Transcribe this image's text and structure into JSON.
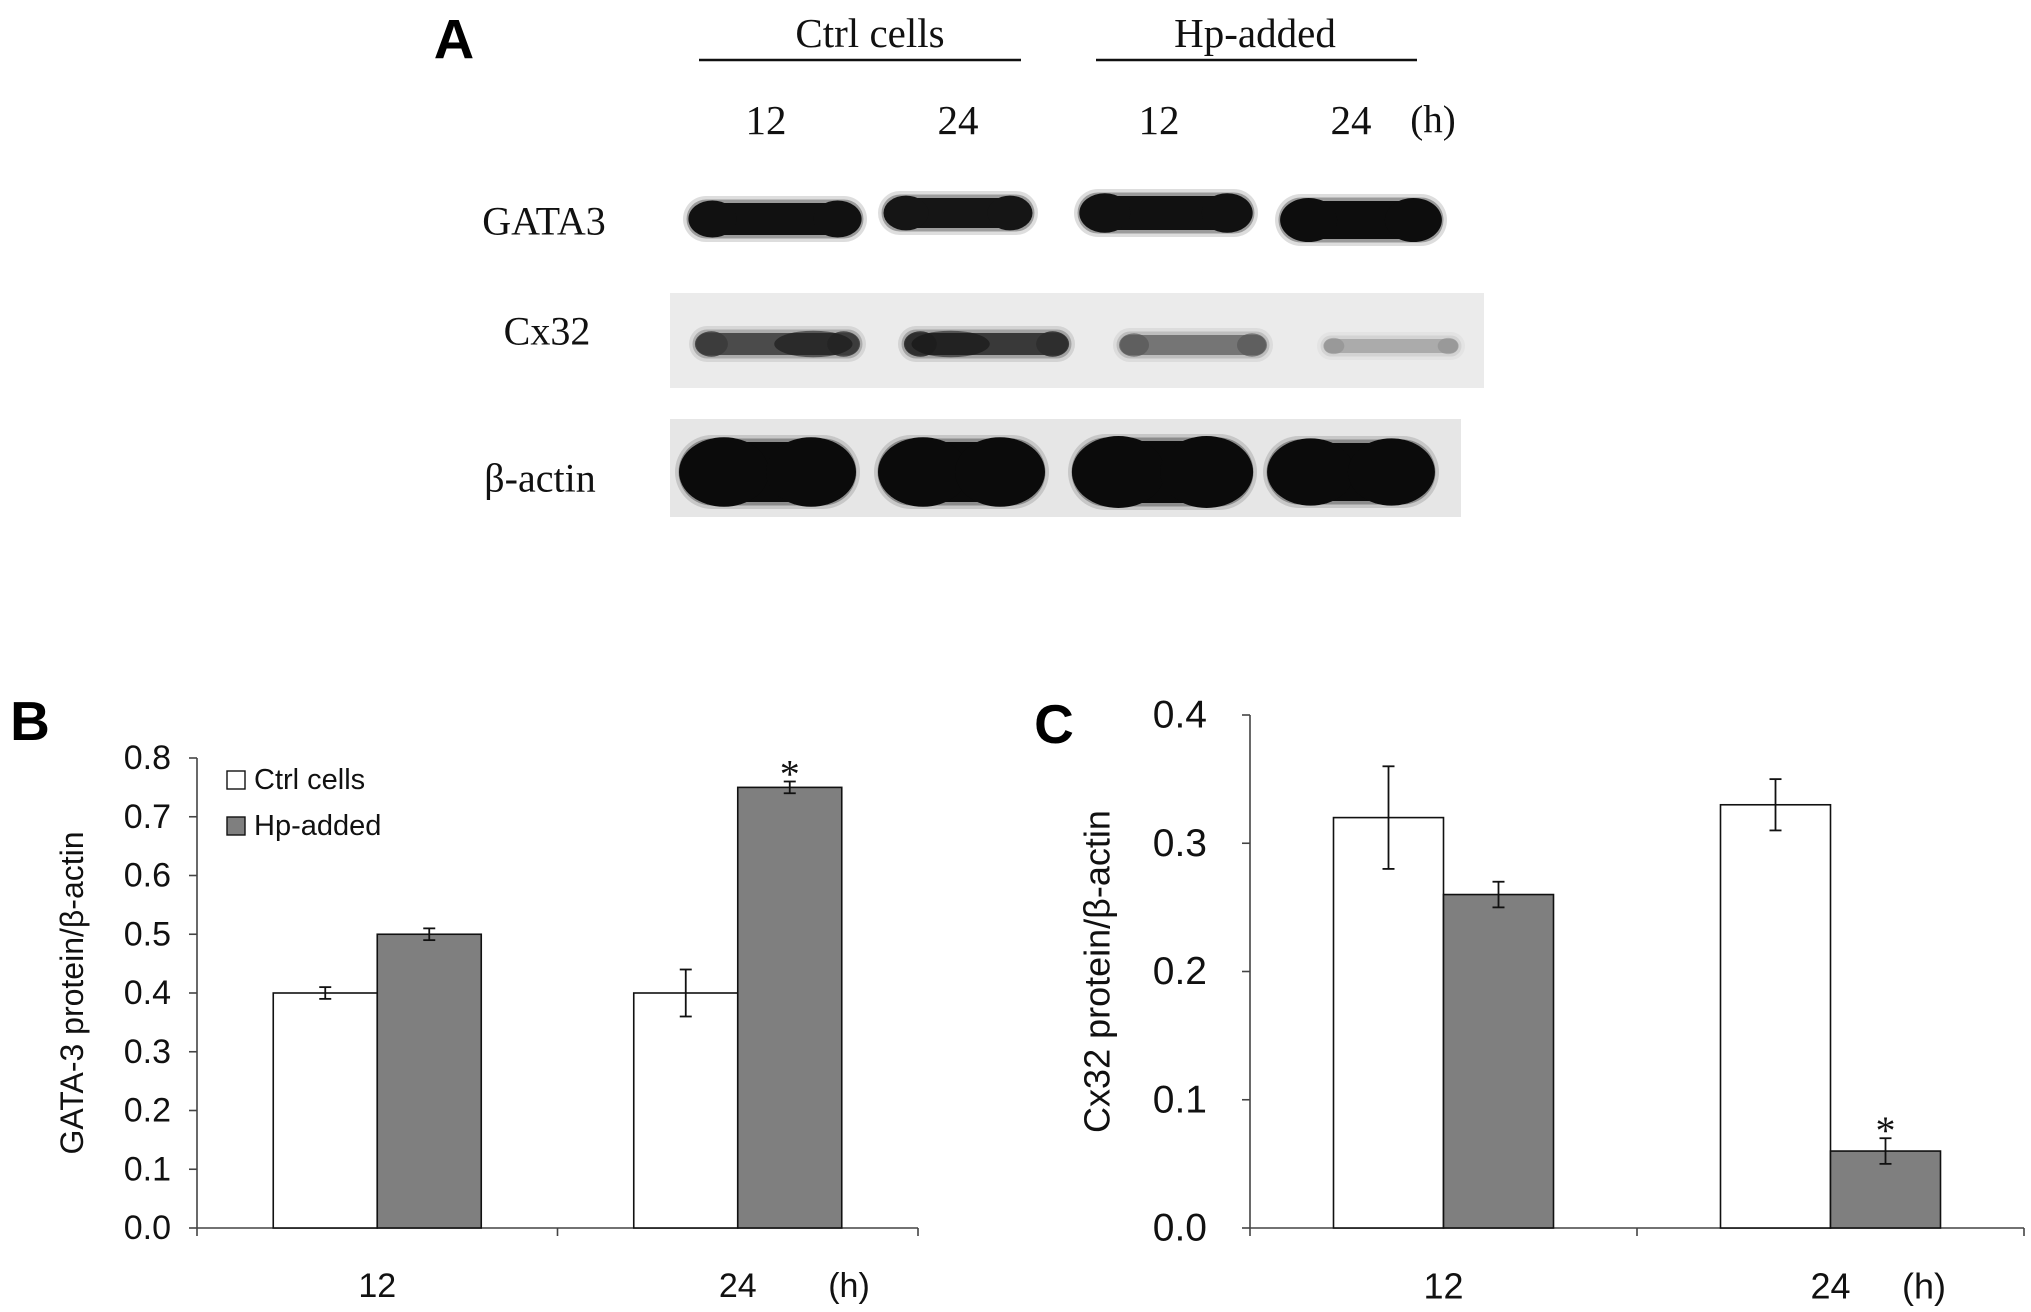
{
  "figure": {
    "panel_a": {
      "label": "A",
      "group_labels": [
        "Ctrl cells",
        "Hp-added"
      ],
      "lane_labels": [
        "12",
        "24",
        "12",
        "24"
      ],
      "time_unit": "(h)",
      "row_labels": [
        "GATA3",
        "Cx32",
        "β-actin"
      ]
    }
  },
  "chart_data": [
    {
      "panel_label": "B",
      "type": "bar",
      "categories": [
        "12",
        "24"
      ],
      "x_unit": "(h)",
      "ylabel": "GATA-3 protein/β-actin",
      "ylim": [
        0,
        0.8
      ],
      "yticks": [
        "0.0",
        "0.1",
        "0.2",
        "0.3",
        "0.4",
        "0.5",
        "0.6",
        "0.7",
        "0.8"
      ],
      "series": [
        {
          "name": "Ctrl cells",
          "values": [
            0.4,
            0.4
          ],
          "errors": [
            0.01,
            0.04
          ],
          "color": "#ffffff"
        },
        {
          "name": "Hp-added",
          "values": [
            0.5,
            0.75
          ],
          "errors": [
            0.01,
            0.01
          ],
          "color": "#7f7f7f"
        }
      ],
      "significance": [
        {
          "series": 1,
          "category": 1,
          "mark": "*"
        }
      ],
      "legend": "top-left",
      "grid": false
    },
    {
      "panel_label": "C",
      "type": "bar",
      "categories": [
        "12",
        "24"
      ],
      "x_unit": "(h)",
      "ylabel": "Cx32 protein/β-actin",
      "ylim": [
        0,
        0.4
      ],
      "yticks": [
        "0.0",
        "0.1",
        "0.2",
        "0.3",
        "0.4"
      ],
      "series": [
        {
          "values": [
            0.32,
            0.33
          ],
          "errors": [
            0.04,
            0.02
          ],
          "color": "#ffffff"
        },
        {
          "values": [
            0.26,
            0.06
          ],
          "errors": [
            0.01,
            0.01
          ],
          "color": "#7f7f7f"
        }
      ],
      "significance": [
        {
          "series": 1,
          "category": 1,
          "mark": "*"
        }
      ],
      "legend": "none",
      "grid": false
    }
  ]
}
